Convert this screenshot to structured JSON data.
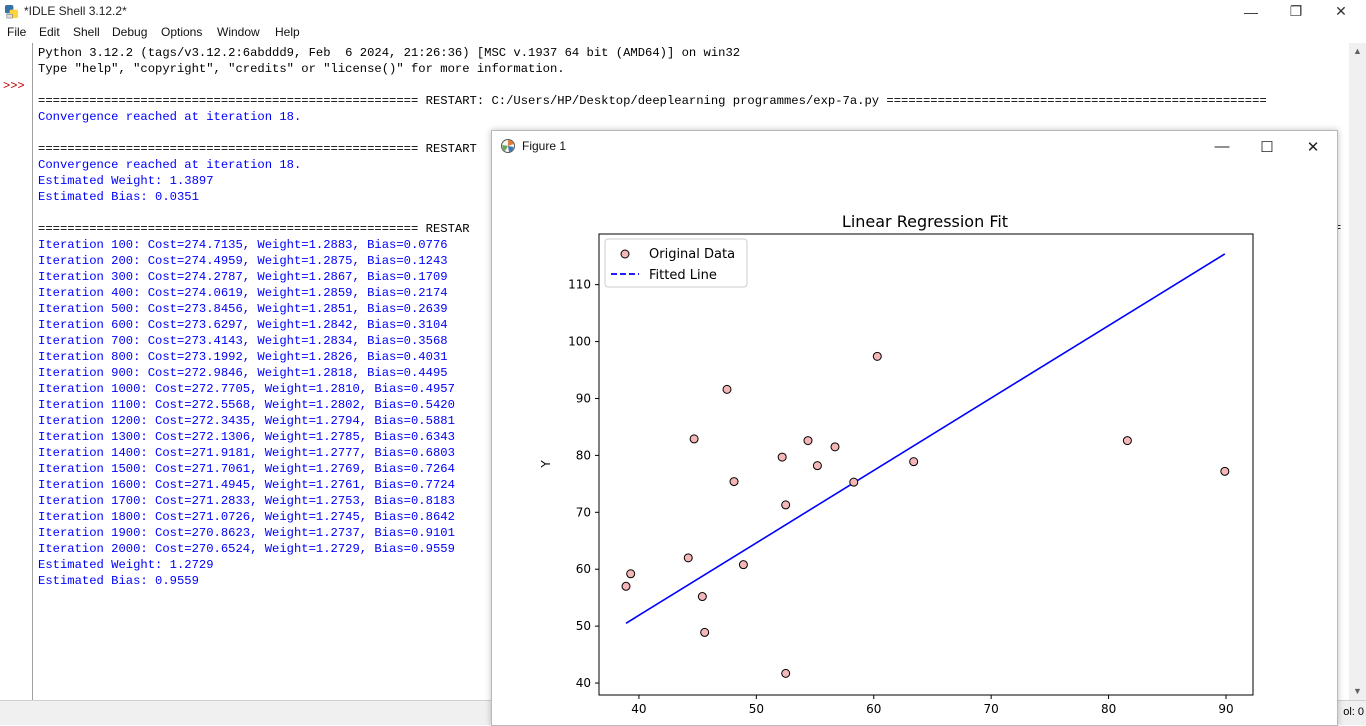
{
  "window": {
    "title": "*IDLE Shell 3.12.2*",
    "minimize": "—",
    "restore": "❐",
    "close": "✕"
  },
  "menu": [
    "File",
    "Edit",
    "Shell",
    "Debug",
    "Options",
    "Window",
    "Help"
  ],
  "prompt": ">>>",
  "shell_lines": [
    {
      "text": "Python 3.12.2 (tags/v3.12.2:6abddd9, Feb  6 2024, 21:26:36) [MSC v.1937 64 bit (AMD64)] on win32",
      "color": "black"
    },
    {
      "text": "Type \"help\", \"copyright\", \"credits\" or \"license()\" for more information.",
      "color": "black"
    },
    {
      "text": "",
      "color": "black"
    },
    {
      "text": "==================================================== RESTART: C:/Users/HP/Desktop/deeplearning programmes/exp-7a.py ====================================================",
      "color": "black"
    },
    {
      "text": "Convergence reached at iteration 18.",
      "color": "blue"
    },
    {
      "text": "",
      "color": "black"
    },
    {
      "text": "==================================================== RESTART",
      "color": "black"
    },
    {
      "text": "Convergence reached at iteration 18.",
      "color": "blue"
    },
    {
      "text": "Estimated Weight: 1.3897",
      "color": "blue"
    },
    {
      "text": "Estimated Bias: 0.0351",
      "color": "blue"
    },
    {
      "text": "",
      "color": "black"
    },
    {
      "text": "==================================================== RESTAR",
      "color": "black"
    },
    {
      "text": "Iteration 100: Cost=274.7135, Weight=1.2883, Bias=0.0776",
      "color": "blue"
    },
    {
      "text": "Iteration 200: Cost=274.4959, Weight=1.2875, Bias=0.1243",
      "color": "blue"
    },
    {
      "text": "Iteration 300: Cost=274.2787, Weight=1.2867, Bias=0.1709",
      "color": "blue"
    },
    {
      "text": "Iteration 400: Cost=274.0619, Weight=1.2859, Bias=0.2174",
      "color": "blue"
    },
    {
      "text": "Iteration 500: Cost=273.8456, Weight=1.2851, Bias=0.2639",
      "color": "blue"
    },
    {
      "text": "Iteration 600: Cost=273.6297, Weight=1.2842, Bias=0.3104",
      "color": "blue"
    },
    {
      "text": "Iteration 700: Cost=273.4143, Weight=1.2834, Bias=0.3568",
      "color": "blue"
    },
    {
      "text": "Iteration 800: Cost=273.1992, Weight=1.2826, Bias=0.4031",
      "color": "blue"
    },
    {
      "text": "Iteration 900: Cost=272.9846, Weight=1.2818, Bias=0.4495",
      "color": "blue"
    },
    {
      "text": "Iteration 1000: Cost=272.7705, Weight=1.2810, Bias=0.4957",
      "color": "blue"
    },
    {
      "text": "Iteration 1100: Cost=272.5568, Weight=1.2802, Bias=0.5420",
      "color": "blue"
    },
    {
      "text": "Iteration 1200: Cost=272.3435, Weight=1.2794, Bias=0.5881",
      "color": "blue"
    },
    {
      "text": "Iteration 1300: Cost=272.1306, Weight=1.2785, Bias=0.6343",
      "color": "blue"
    },
    {
      "text": "Iteration 1400: Cost=271.9181, Weight=1.2777, Bias=0.6803",
      "color": "blue"
    },
    {
      "text": "Iteration 1500: Cost=271.7061, Weight=1.2769, Bias=0.7264",
      "color": "blue"
    },
    {
      "text": "Iteration 1600: Cost=271.4945, Weight=1.2761, Bias=0.7724",
      "color": "blue"
    },
    {
      "text": "Iteration 1700: Cost=271.2833, Weight=1.2753, Bias=0.8183",
      "color": "blue"
    },
    {
      "text": "Iteration 1800: Cost=271.0726, Weight=1.2745, Bias=0.8642",
      "color": "blue"
    },
    {
      "text": "Iteration 1900: Cost=270.8623, Weight=1.2737, Bias=0.9101",
      "color": "blue"
    },
    {
      "text": "Iteration 2000: Cost=270.6524, Weight=1.2729, Bias=0.9559",
      "color": "blue"
    },
    {
      "text": "Estimated Weight: 1.2729",
      "color": "blue"
    },
    {
      "text": "Estimated Bias: 0.9559",
      "color": "blue"
    }
  ],
  "right_edge_marker": "=",
  "status": {
    "col": "ol: 0"
  },
  "figure_window": {
    "title": "Figure 1",
    "minimize": "—",
    "maximize": "☐",
    "close": "✕"
  },
  "chart_data": {
    "type": "scatter",
    "title": "Linear Regression Fit",
    "xlabel": "",
    "ylabel": "Y",
    "xlim": [
      36.6,
      92.3
    ],
    "ylim": [
      37.9,
      118.9
    ],
    "xticks": [
      40,
      50,
      60,
      70,
      80,
      90
    ],
    "yticks": [
      40,
      50,
      60,
      70,
      80,
      90,
      100,
      110
    ],
    "grid": false,
    "legend_placement": "upper-left",
    "series": [
      {
        "name": "Original Data",
        "kind": "scatter",
        "color": "#f4b6b6",
        "edge": "#000000",
        "points": [
          [
            38.9,
            57.0
          ],
          [
            39.3,
            59.2
          ],
          [
            44.2,
            62.0
          ],
          [
            44.7,
            82.9
          ],
          [
            45.4,
            55.2
          ],
          [
            45.6,
            48.9
          ],
          [
            47.5,
            91.6
          ],
          [
            48.1,
            75.4
          ],
          [
            48.9,
            60.8
          ],
          [
            52.2,
            79.7
          ],
          [
            52.5,
            71.3
          ],
          [
            52.5,
            41.7
          ],
          [
            54.4,
            82.6
          ],
          [
            55.2,
            78.2
          ],
          [
            56.7,
            81.5
          ],
          [
            58.3,
            75.3
          ],
          [
            60.3,
            97.4
          ],
          [
            63.4,
            78.9
          ],
          [
            81.6,
            82.6
          ],
          [
            89.9,
            77.2
          ]
        ]
      },
      {
        "name": "Fitted Line",
        "kind": "line",
        "color": "#0000ff",
        "style": "dashed",
        "points": [
          [
            38.9,
            50.5
          ],
          [
            89.9,
            115.4
          ]
        ]
      }
    ]
  }
}
